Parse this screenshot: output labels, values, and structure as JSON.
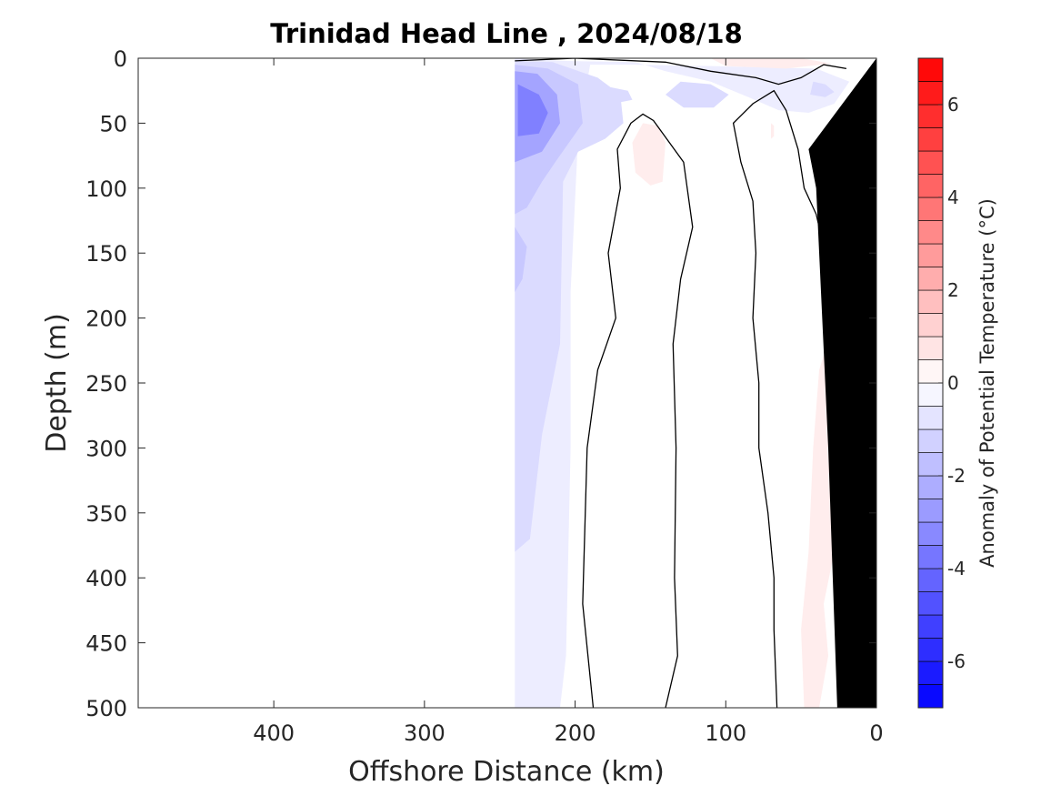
{
  "chart_data": {
    "type": "heatmap",
    "title": "Trinidad Head Line , 2024/08/18",
    "xlabel": "Offshore Distance (km)",
    "ylabel": "Depth (m)",
    "xlim": [
      490,
      0
    ],
    "ylim": [
      0,
      500
    ],
    "x_reversed": true,
    "y_reversed": true,
    "xticks": [
      400,
      300,
      200,
      100,
      0
    ],
    "yticks": [
      0,
      50,
      100,
      150,
      200,
      250,
      300,
      350,
      400,
      450,
      500
    ],
    "colorbar": {
      "label": "Anomaly of Potential Temperature (°C)",
      "range": [
        -7,
        7
      ],
      "step": 0.5,
      "ticks": [
        6,
        4,
        2,
        0,
        -2,
        -4,
        -6
      ],
      "colors": {
        "low": "#0000ff",
        "mid": "#ffffff",
        "high": "#ff0000"
      }
    },
    "bottom_color": "#000000",
    "zero_contour_color": "#000000",
    "data_x_extent_km": [
      240,
      0
    ],
    "anomaly_regions": [
      {
        "value": -3.5,
        "points": [
          [
            238,
            20
          ],
          [
            224,
            28
          ],
          [
            218,
            42
          ],
          [
            224,
            58
          ],
          [
            238,
            60
          ]
        ]
      },
      {
        "value": -2.5,
        "points": [
          [
            240,
            10
          ],
          [
            225,
            12
          ],
          [
            212,
            28
          ],
          [
            210,
            50
          ],
          [
            222,
            72
          ],
          [
            240,
            80
          ]
        ]
      },
      {
        "value": -1.5,
        "points": [
          [
            240,
            5
          ],
          [
            218,
            8
          ],
          [
            198,
            20
          ],
          [
            195,
            50
          ],
          [
            212,
            78
          ],
          [
            222,
            95
          ],
          [
            232,
            115
          ],
          [
            240,
            120
          ]
        ]
      },
      {
        "value": -1.5,
        "points": [
          [
            240,
            130
          ],
          [
            232,
            145
          ],
          [
            235,
            170
          ],
          [
            240,
            180
          ]
        ]
      },
      {
        "value": -1.0,
        "points": [
          [
            240,
            2
          ],
          [
            215,
            3
          ],
          [
            185,
            15
          ],
          [
            170,
            28
          ],
          [
            168,
            50
          ],
          [
            180,
            62
          ],
          [
            198,
            72
          ],
          [
            208,
            95
          ],
          [
            210,
            220
          ],
          [
            222,
            290
          ],
          [
            230,
            370
          ],
          [
            240,
            380
          ]
        ]
      },
      {
        "value": -0.5,
        "points": [
          [
            240,
            0
          ],
          [
            210,
            2
          ],
          [
            160,
            3
          ],
          [
            140,
            10
          ],
          [
            110,
            18
          ],
          [
            85,
            30
          ],
          [
            65,
            40
          ],
          [
            45,
            42
          ],
          [
            28,
            35
          ],
          [
            18,
            18
          ],
          [
            40,
            8
          ],
          [
            110,
            6
          ],
          [
            160,
            5
          ],
          [
            190,
            5
          ],
          [
            198,
            60
          ],
          [
            203,
            180
          ],
          [
            203,
            300
          ],
          [
            206,
            460
          ],
          [
            210,
            500
          ],
          [
            240,
            500
          ]
        ]
      },
      {
        "value": -1.0,
        "points": [
          [
            130,
            18
          ],
          [
            110,
            20
          ],
          [
            98,
            28
          ],
          [
            108,
            38
          ],
          [
            128,
            38
          ],
          [
            140,
            28
          ]
        ]
      },
      {
        "value": -1.0,
        "points": [
          [
            178,
            22
          ],
          [
            165,
            25
          ],
          [
            162,
            32
          ],
          [
            175,
            35
          ]
        ]
      },
      {
        "value": -1.0,
        "points": [
          [
            42,
            18
          ],
          [
            34,
            20
          ],
          [
            28,
            26
          ],
          [
            34,
            30
          ],
          [
            44,
            28
          ]
        ]
      },
      {
        "value": 0.5,
        "points": [
          [
            155,
            50
          ],
          [
            145,
            52
          ],
          [
            140,
            65
          ],
          [
            142,
            95
          ],
          [
            150,
            98
          ],
          [
            160,
            88
          ],
          [
            162,
            65
          ]
        ]
      },
      {
        "value": 0.5,
        "points": [
          [
            110,
            0
          ],
          [
            50,
            0
          ],
          [
            30,
            4
          ],
          [
            60,
            8
          ],
          [
            100,
            6
          ]
        ]
      },
      {
        "value": 0.5,
        "points": [
          [
            70,
            50
          ],
          [
            68,
            52
          ],
          [
            68,
            60
          ],
          [
            70,
            62
          ]
        ]
      },
      {
        "value": 0.5,
        "points": [
          [
            30,
            210
          ],
          [
            38,
            240
          ],
          [
            42,
            300
          ],
          [
            45,
            380
          ],
          [
            50,
            440
          ],
          [
            48,
            500
          ],
          [
            38,
            500
          ],
          [
            32,
            460
          ],
          [
            35,
            420
          ],
          [
            28,
            380
          ],
          [
            26,
            300
          ]
        ]
      }
    ],
    "zero_contours": [
      [
        [
          240,
          2
        ],
        [
          200,
          0
        ],
        [
          140,
          3
        ],
        [
          110,
          10
        ],
        [
          80,
          15
        ],
        [
          65,
          20
        ],
        [
          50,
          15
        ],
        [
          35,
          5
        ],
        [
          20,
          8
        ]
      ],
      [
        [
          188,
          500
        ],
        [
          195,
          420
        ],
        [
          192,
          300
        ],
        [
          185,
          240
        ],
        [
          173,
          200
        ],
        [
          178,
          150
        ],
        [
          170,
          100
        ],
        [
          172,
          70
        ],
        [
          163,
          50
        ],
        [
          155,
          43
        ],
        [
          148,
          48
        ],
        [
          128,
          80
        ],
        [
          122,
          130
        ],
        [
          130,
          170
        ],
        [
          135,
          220
        ],
        [
          133,
          300
        ],
        [
          134,
          400
        ],
        [
          132,
          460
        ],
        [
          140,
          500
        ]
      ],
      [
        [
          66,
          500
        ],
        [
          68,
          440
        ],
        [
          68,
          400
        ],
        [
          72,
          350
        ],
        [
          78,
          300
        ],
        [
          78,
          250
        ],
        [
          82,
          200
        ],
        [
          80,
          150
        ],
        [
          82,
          110
        ],
        [
          90,
          80
        ],
        [
          95,
          50
        ],
        [
          82,
          35
        ],
        [
          68,
          25
        ],
        [
          60,
          40
        ],
        [
          52,
          70
        ],
        [
          48,
          100
        ],
        [
          40,
          120
        ],
        [
          38,
          130
        ],
        [
          30,
          135
        ],
        [
          25,
          125
        ],
        [
          20,
          110
        ]
      ]
    ],
    "bottom_polygon": [
      [
        0,
        0
      ],
      [
        0,
        500
      ],
      [
        26,
        500
      ],
      [
        32,
        300
      ],
      [
        40,
        100
      ],
      [
        45,
        70
      ]
    ]
  }
}
